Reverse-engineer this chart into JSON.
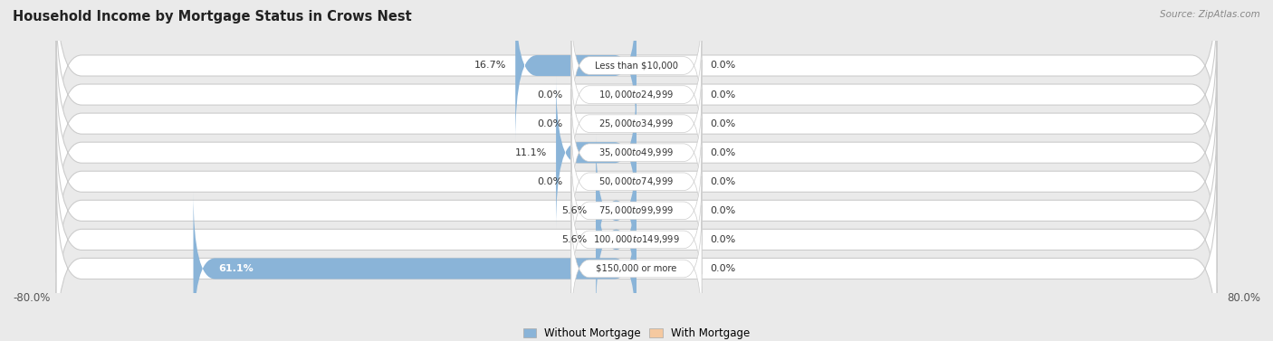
{
  "title": "Household Income by Mortgage Status in Crows Nest",
  "source": "Source: ZipAtlas.com",
  "categories": [
    "Less than $10,000",
    "$10,000 to $24,999",
    "$25,000 to $34,999",
    "$35,000 to $49,999",
    "$50,000 to $74,999",
    "$75,000 to $99,999",
    "$100,000 to $149,999",
    "$150,000 or more"
  ],
  "without_mortgage": [
    16.7,
    0.0,
    0.0,
    11.1,
    0.0,
    5.6,
    5.6,
    61.1
  ],
  "with_mortgage": [
    0.0,
    0.0,
    0.0,
    0.0,
    0.0,
    0.0,
    0.0,
    0.0
  ],
  "color_without": "#8ab4d8",
  "color_with": "#f5c9a0",
  "axis_max": 80.0,
  "bg_color": "#eaeaea",
  "legend_labels": [
    "Without Mortgage",
    "With Mortgage"
  ]
}
